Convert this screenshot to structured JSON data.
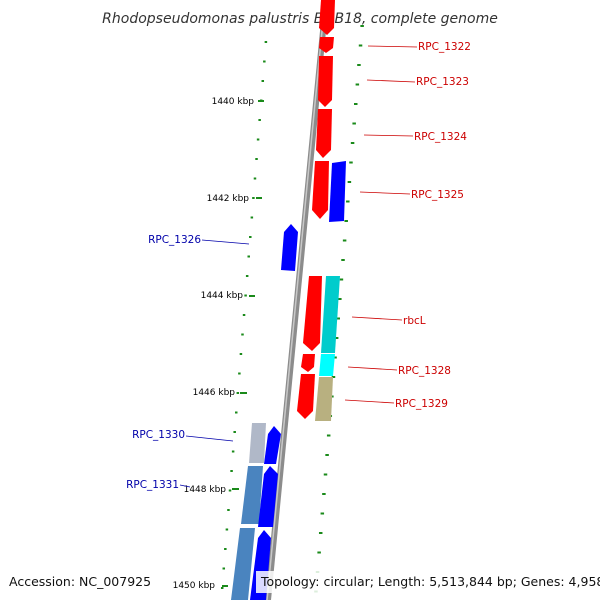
{
  "title": "Rhodopseudomonas palustris BisB18, complete genome",
  "accession": "Accession: NC_007925",
  "summary": "Topology: circular; Length: 5,513,844 bp; Genes: 4,958",
  "ticks": [
    "1440 kbp",
    "1442 kbp",
    "1444 kbp",
    "1446 kbp",
    "1448 kbp",
    "1450 kbp"
  ],
  "colors": {
    "backbone": "#8c8c8c",
    "tick_green": "#1a8a1a",
    "gene_forward_red": "#ff0000",
    "gene_reverse_blue": "#0000ff",
    "rna_cyan": "#00cccc",
    "khaki": "#b8b080",
    "steel_blue": "#4a84bf",
    "grey_blue": "#b0b8c8",
    "label_red": "#cc0000",
    "label_blue": "#0000aa"
  },
  "genes": [
    {
      "label": "RPC_1322",
      "color": "label_red"
    },
    {
      "label": "RPC_1323",
      "color": "label_red"
    },
    {
      "label": "RPC_1324",
      "color": "label_red"
    },
    {
      "label": "RPC_1325",
      "color": "label_red"
    },
    {
      "label": "RPC_1326",
      "color": "label_blue"
    },
    {
      "label": "rbcL",
      "color": "label_red"
    },
    {
      "label": "RPC_1328",
      "color": "label_red"
    },
    {
      "label": "RPC_1329",
      "color": "label_red"
    },
    {
      "label": "RPC_1330",
      "color": "label_blue"
    },
    {
      "label": "RPC_1331",
      "color": "label_blue"
    }
  ]
}
